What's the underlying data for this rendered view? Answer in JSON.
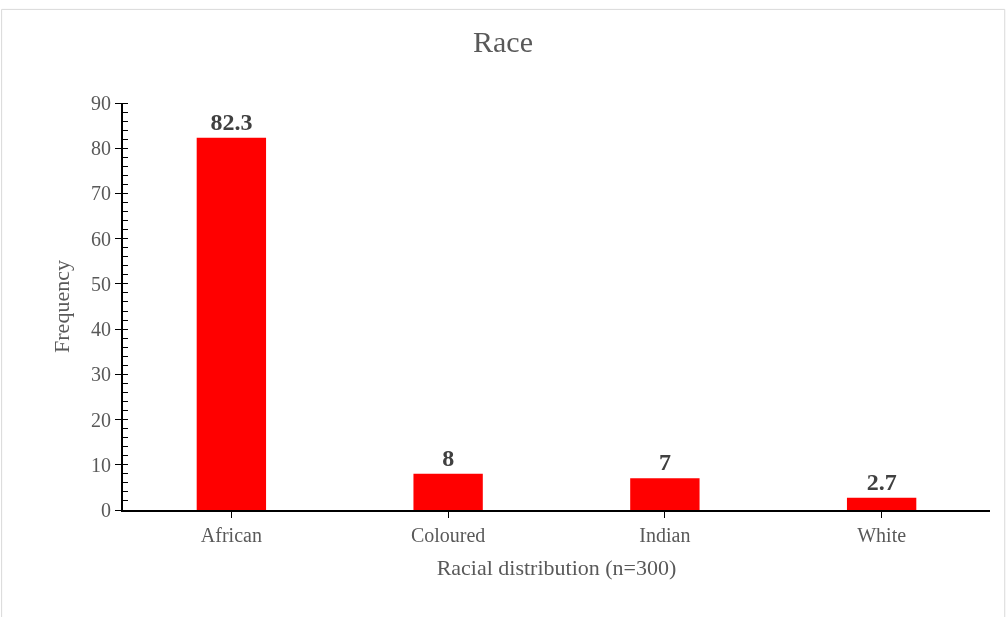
{
  "chart_data": {
    "type": "bar",
    "title": "Race",
    "xlabel": "Racial distribution (n=300)",
    "ylabel": "Frequency",
    "categories": [
      "African",
      "Coloured",
      "Indian",
      "White"
    ],
    "values": [
      82.3,
      8,
      7,
      2.7
    ],
    "color": "#ff0000",
    "ylim": [
      0,
      90
    ],
    "yticks": [
      0,
      10,
      20,
      30,
      40,
      50,
      60,
      70,
      80,
      90
    ],
    "data_labels": true
  }
}
